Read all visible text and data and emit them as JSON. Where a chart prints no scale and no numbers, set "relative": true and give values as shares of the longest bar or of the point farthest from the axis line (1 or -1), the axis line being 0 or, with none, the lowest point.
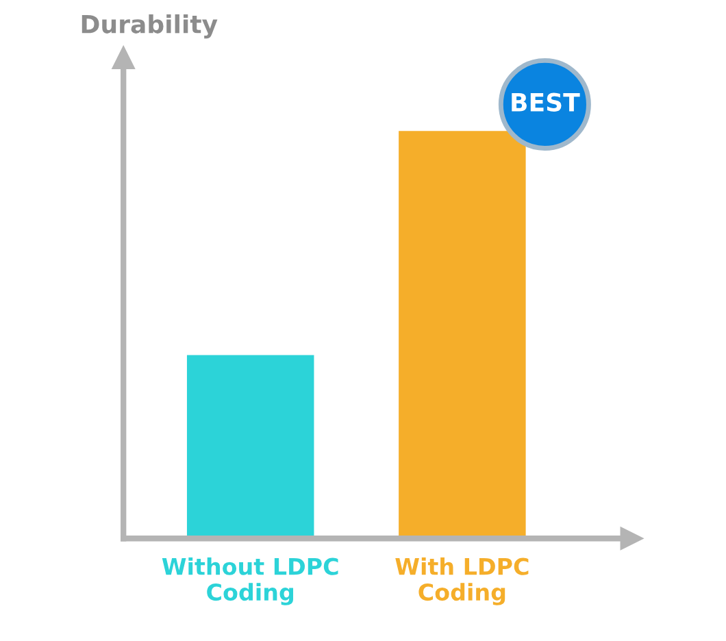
{
  "chart_data": {
    "type": "bar",
    "relative": true,
    "ylabel": "Durability",
    "categories": [
      "Without LDPC\nCoding",
      "With LDPC\nCoding"
    ],
    "values": [
      0.45,
      1
    ],
    "colors": [
      "#2cd3d8",
      "#f5ae2a"
    ],
    "annotations": [
      "BEST"
    ]
  }
}
